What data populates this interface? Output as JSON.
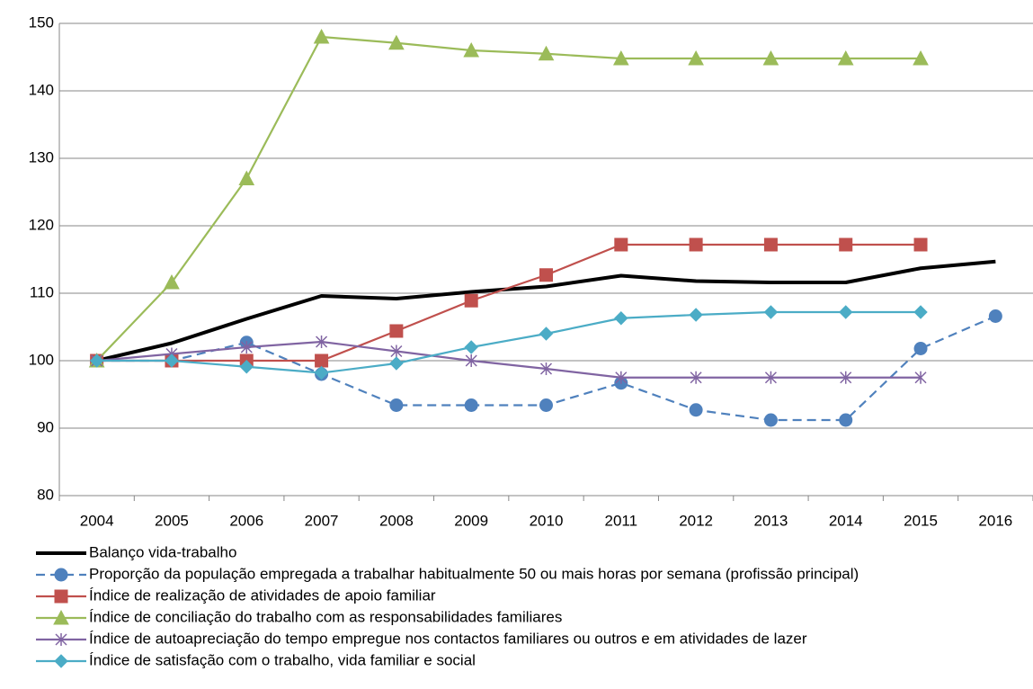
{
  "chart_data": {
    "type": "line",
    "categories": [
      "2004",
      "2005",
      "2006",
      "2007",
      "2008",
      "2009",
      "2010",
      "2011",
      "2012",
      "2013",
      "2014",
      "2015",
      "2016"
    ],
    "ylim": [
      80,
      150
    ],
    "yticks": [
      80,
      90,
      100,
      110,
      120,
      130,
      140,
      150
    ],
    "grid": true,
    "legend": "bottom",
    "series": [
      {
        "name": "Balanço vida-trabalho",
        "color": "#000000",
        "width": 4,
        "marker": "none",
        "dash": false,
        "values": [
          100,
          102.6,
          106.2,
          109.6,
          109.2,
          110.2,
          111,
          112.6,
          111.8,
          111.6,
          111.6,
          113.7,
          114.7
        ]
      },
      {
        "name": "Proporção da população empregada a trabalhar habitualmente 50 ou mais horas por semana (profissão principal)",
        "color": "#4f81bd",
        "width": 2.2,
        "marker": "circle",
        "dash": true,
        "values": [
          100,
          100,
          102.7,
          98,
          93.4,
          93.4,
          93.4,
          96.7,
          92.7,
          91.2,
          91.2,
          101.8,
          106.6
        ]
      },
      {
        "name": "Índice de realização de atividades de apoio familiar",
        "color": "#c0504d",
        "width": 2.2,
        "marker": "square",
        "dash": false,
        "values": [
          100,
          100,
          100,
          100,
          104.4,
          108.9,
          112.7,
          117.2,
          117.2,
          117.2,
          117.2,
          117.2,
          null
        ]
      },
      {
        "name": "Índice de conciliação do trabalho com as responsabilidades familiares",
        "color": "#9bbb59",
        "width": 2.2,
        "marker": "triangle",
        "dash": false,
        "values": [
          100,
          111.6,
          127,
          148,
          147.1,
          146,
          145.5,
          144.8,
          144.8,
          144.8,
          144.8,
          144.8,
          null
        ]
      },
      {
        "name": "Índice de autoapreciação do tempo empregue nos contactos familiares ou outros e em atividades de lazer",
        "color": "#8064a2",
        "width": 2.2,
        "marker": "star",
        "dash": false,
        "values": [
          100,
          101,
          102,
          102.8,
          101.4,
          100,
          98.8,
          97.5,
          97.5,
          97.5,
          97.5,
          97.5,
          null
        ]
      },
      {
        "name": "Índice de satisfação com o trabalho, vida familiar e social",
        "color": "#4bacc6",
        "width": 2.2,
        "marker": "diamond",
        "dash": false,
        "values": [
          100,
          100,
          99.1,
          98.2,
          99.6,
          102,
          104,
          106.3,
          106.8,
          107.2,
          107.2,
          107.2,
          null
        ]
      }
    ]
  }
}
